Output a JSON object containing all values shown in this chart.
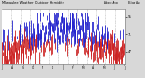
{
  "title": "Milwaukee Weather  Outdoor Humidity",
  "legend_above": "Above Avg",
  "legend_below": "Below Avg",
  "bg_color": "#d8d8d8",
  "plot_bg_color": "#ffffff",
  "bar_color_above": "#2222cc",
  "bar_color_below": "#cc2222",
  "ylim": [
    30,
    105
  ],
  "ytick_vals": [
    47,
    71,
    95
  ],
  "n_days": 365,
  "seed": 42,
  "avg_humidity": 62,
  "amplitude": 15,
  "period": 365,
  "noise_scale": 14,
  "grid_color": "#aaaaaa",
  "grid_style": "--",
  "grid_alpha": 0.8,
  "n_grid_lines": 12,
  "bar_linewidth": 0.6,
  "month_labels": [
    "J",
    "A",
    "S",
    "O",
    "N",
    "D",
    "J",
    "F",
    "M",
    "A",
    "M",
    "J",
    "J"
  ],
  "figsize": [
    1.6,
    0.87
  ],
  "dpi": 100
}
